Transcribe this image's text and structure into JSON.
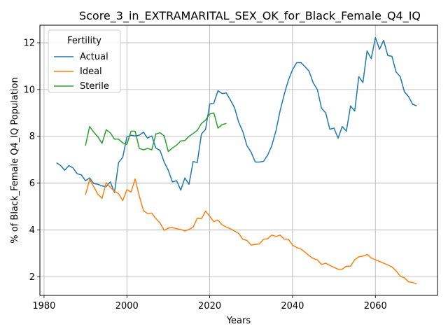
{
  "chart_data": {
    "type": "line",
    "title": "Score_3_in_EXTRAMARITAL_SEX_OK_for_Black_Female_Q4_IQ",
    "xlabel": "Years",
    "ylabel": "% of Black_Female Q4_IQ Population",
    "xlim": [
      1979,
      2075
    ],
    "ylim": [
      1.2,
      12.75
    ],
    "xticks": [
      1980,
      2000,
      2020,
      2040,
      2060
    ],
    "yticks": [
      2,
      4,
      6,
      8,
      10,
      12
    ],
    "grid": true,
    "legend": {
      "title": "Fertility",
      "placement": "top-left"
    },
    "series": [
      {
        "name": "Actual",
        "color": "#1f77b4",
        "x": [
          1983,
          1984,
          1985,
          1986,
          1987,
          1988,
          1989,
          1990,
          1991,
          1992,
          1993,
          1994,
          1995,
          1996,
          1997,
          1998,
          1999,
          2000,
          2001,
          2002,
          2003,
          2004,
          2005,
          2006,
          2007,
          2008,
          2009,
          2010,
          2011,
          2012,
          2013,
          2014,
          2015,
          2016,
          2017,
          2018,
          2019,
          2020,
          2021,
          2022,
          2023,
          2024,
          2025,
          2026,
          2027,
          2028,
          2029,
          2030,
          2031,
          2032,
          2033,
          2034,
          2035,
          2036,
          2037,
          2038,
          2039,
          2040,
          2041,
          2042,
          2043,
          2044,
          2045,
          2046,
          2047,
          2048,
          2049,
          2050,
          2051,
          2052,
          2053,
          2054,
          2055,
          2056,
          2057,
          2058,
          2059,
          2060,
          2061,
          2062,
          2063,
          2064,
          2065,
          2066,
          2067,
          2068,
          2069,
          2070
        ],
        "values": [
          6.87,
          6.75,
          6.55,
          6.75,
          6.65,
          6.4,
          6.35,
          6.1,
          6.22,
          5.98,
          5.95,
          5.88,
          5.85,
          6.05,
          5.6,
          6.88,
          7.1,
          7.98,
          8.05,
          8.02,
          8.05,
          8.18,
          7.92,
          8.02,
          7.5,
          7.4,
          6.9,
          6.55,
          6.05,
          6.1,
          5.7,
          6.22,
          5.95,
          6.92,
          6.88,
          8.1,
          8.3,
          9.38,
          9.42,
          9.95,
          9.83,
          9.85,
          9.55,
          9.22,
          8.6,
          8.2,
          7.6,
          7.32,
          6.9,
          6.9,
          6.93,
          7.2,
          7.6,
          8.25,
          9.1,
          9.8,
          10.4,
          10.85,
          11.15,
          11.15,
          10.98,
          10.78,
          10.28,
          10.0,
          9.2,
          9.0,
          8.3,
          8.35,
          7.92,
          8.42,
          8.22,
          9.3,
          9.08,
          10.55,
          10.3,
          11.65,
          11.32,
          12.22,
          11.72,
          12.1,
          11.45,
          11.42,
          10.75,
          10.55,
          9.9,
          9.7,
          9.37,
          9.3
        ]
      },
      {
        "name": "Ideal",
        "color": "#ff7f0e",
        "x": [
          1990,
          1991,
          1992,
          1993,
          1994,
          1995,
          1996,
          1997,
          1998,
          1999,
          2000,
          2001,
          2002,
          2003,
          2004,
          2005,
          2006,
          2007,
          2008,
          2009,
          2010,
          2011,
          2012,
          2013,
          2014,
          2015,
          2016,
          2017,
          2018,
          2019,
          2020,
          2021,
          2022,
          2023,
          2024,
          2025,
          2026,
          2027,
          2028,
          2029,
          2030,
          2031,
          2032,
          2033,
          2034,
          2035,
          2036,
          2037,
          2038,
          2039,
          2040,
          2041,
          2042,
          2043,
          2044,
          2045,
          2046,
          2047,
          2048,
          2049,
          2050,
          2051,
          2052,
          2053,
          2054,
          2055,
          2056,
          2057,
          2058,
          2059,
          2060,
          2061,
          2062,
          2063,
          2064,
          2065,
          2066,
          2067,
          2068,
          2069,
          2070
        ],
        "values": [
          5.5,
          6.15,
          5.85,
          5.52,
          5.35,
          6.02,
          5.82,
          5.65,
          5.55,
          5.25,
          5.72,
          5.62,
          6.18,
          5.45,
          4.82,
          4.7,
          4.72,
          4.48,
          4.3,
          3.98,
          4.08,
          4.1,
          4.05,
          4.02,
          3.95,
          4.02,
          4.12,
          4.5,
          4.48,
          4.8,
          4.58,
          4.35,
          4.42,
          4.22,
          4.12,
          4.05,
          3.95,
          3.85,
          3.6,
          3.55,
          3.35,
          3.38,
          3.4,
          3.6,
          3.62,
          3.78,
          3.72,
          3.78,
          3.6,
          3.6,
          3.35,
          3.25,
          3.18,
          3.05,
          2.9,
          2.78,
          2.72,
          2.52,
          2.58,
          2.48,
          2.4,
          2.32,
          2.32,
          2.45,
          2.45,
          2.72,
          2.85,
          2.88,
          2.95,
          2.8,
          2.72,
          2.65,
          2.58,
          2.5,
          2.42,
          2.25,
          2.02,
          1.95,
          1.78,
          1.75,
          1.7
        ]
      },
      {
        "name": "Sterile",
        "color": "#2ca02c",
        "x": [
          1990,
          1991,
          1992,
          1993,
          1994,
          1995,
          1996,
          1997,
          1998,
          1999,
          2000,
          2001,
          2002,
          2003,
          2004,
          2005,
          2006,
          2007,
          2008,
          2009,
          2010,
          2011,
          2012,
          2013,
          2014,
          2015,
          2016,
          2017,
          2018,
          2019,
          2020,
          2021,
          2022,
          2023,
          2024
        ],
        "values": [
          7.6,
          8.42,
          8.18,
          7.98,
          7.7,
          8.28,
          8.15,
          7.88,
          7.88,
          7.72,
          7.65,
          8.22,
          8.22,
          7.48,
          7.42,
          7.48,
          7.42,
          8.1,
          8.15,
          8.02,
          7.35,
          7.5,
          7.62,
          7.8,
          7.82,
          8.0,
          8.12,
          8.25,
          8.55,
          8.7,
          8.95,
          9.0,
          8.35,
          8.5,
          8.55
        ]
      }
    ]
  }
}
